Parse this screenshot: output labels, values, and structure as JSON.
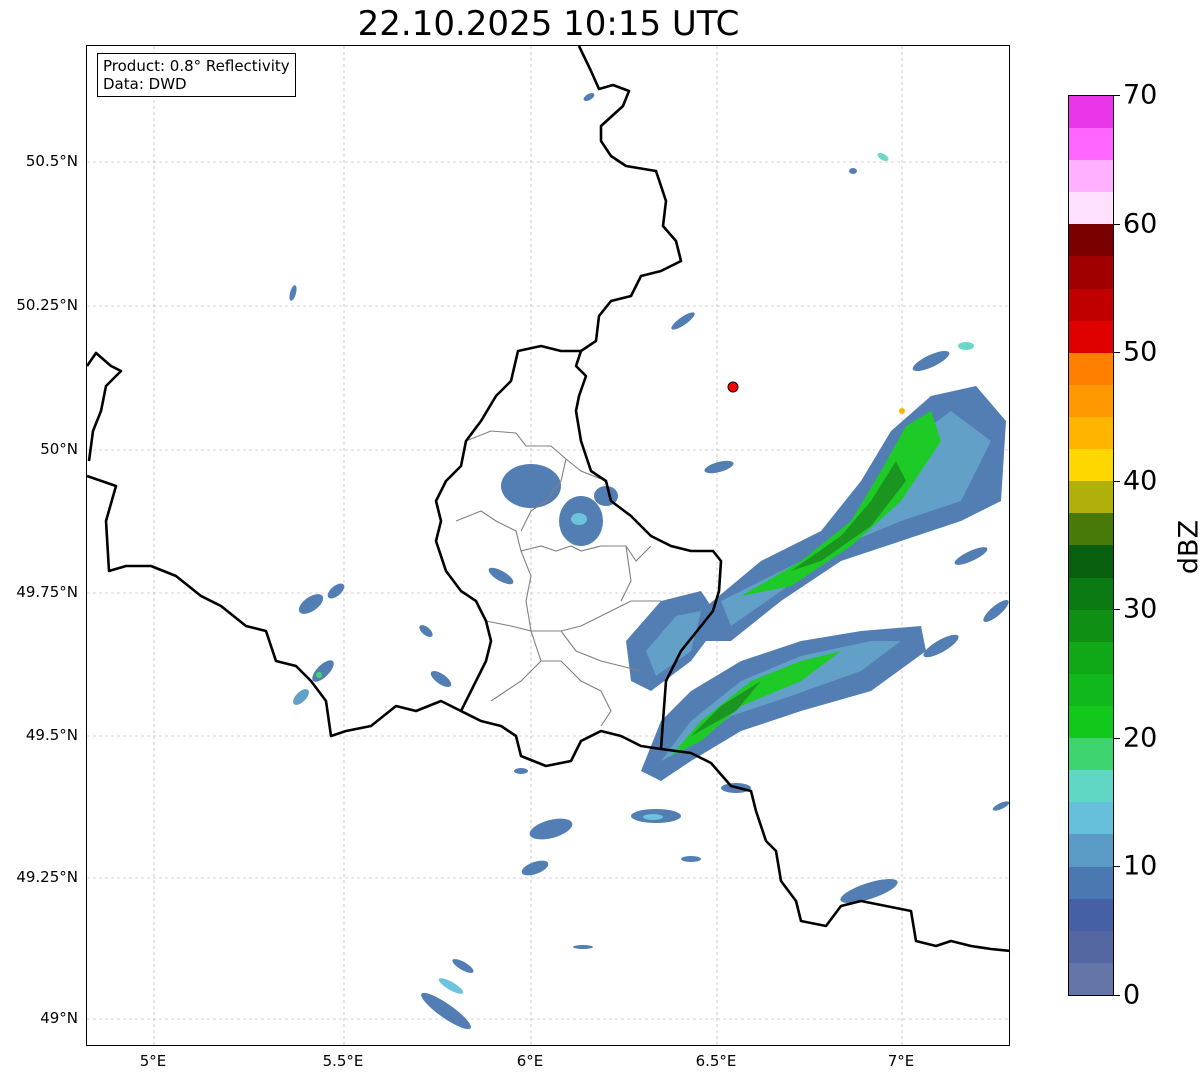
{
  "title": "22.10.2025 10:15 UTC",
  "info": {
    "product": "Product: 0.8° Reflectivity",
    "data": "Data: DWD"
  },
  "axes": {
    "lat_labels": [
      "50.5°N",
      "50.25°N",
      "50°N",
      "49.75°N",
      "49.5°N",
      "49.25°N",
      "49°N"
    ],
    "lon_labels": [
      "5°E",
      "5.5°E",
      "6°E",
      "6.5°E",
      "7°E"
    ]
  },
  "colorbar": {
    "unit": "dBZ",
    "tick_labels": [
      "0",
      "10",
      "20",
      "30",
      "40",
      "50",
      "60",
      "70"
    ],
    "range": [
      0,
      70
    ],
    "colors": [
      "#6675a8",
      "#5467a0",
      "#4560a3",
      "#4a78b0",
      "#5a9bc5",
      "#66c0dc",
      "#60d6c4",
      "#3dd36e",
      "#12c81a",
      "#11b81b",
      "#11a818",
      "#0f9015",
      "#0c7a12",
      "#085f0e",
      "#487a0a",
      "#b0b00a",
      "#ffd700",
      "#ffb400",
      "#ff9800",
      "#ff7f00",
      "#e00000",
      "#c00000",
      "#a00000",
      "#7a0000",
      "#ffe0ff",
      "#ffb0ff",
      "#ff66ff",
      "#e836e8"
    ]
  },
  "marker_color": "#ff0000"
}
